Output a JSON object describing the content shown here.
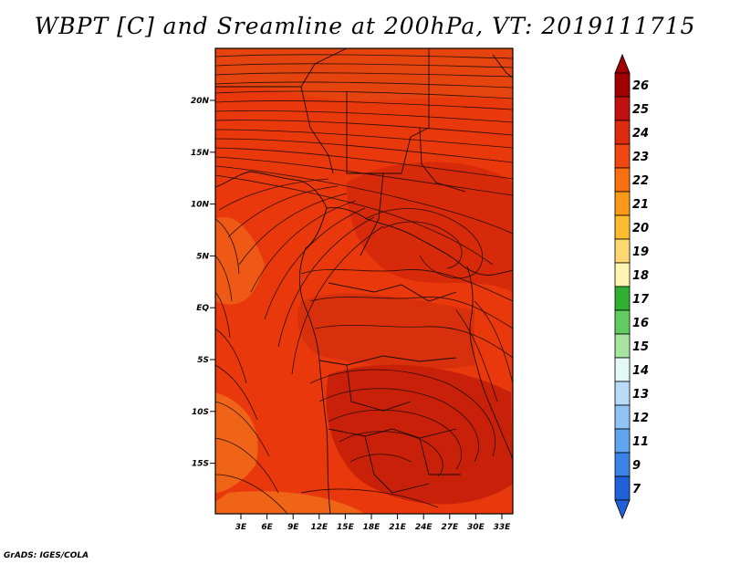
{
  "title": "WBPT [C] and Sreamline at 200hPa, VT: 2019111715",
  "footer": "GrADS: IGES/COLA",
  "map": {
    "lat_ticks": [
      "20N",
      "15N",
      "10N",
      "5N",
      "EQ",
      "5S",
      "10S",
      "15S"
    ],
    "lon_ticks": [
      "3E",
      "6E",
      "9E",
      "12E",
      "15E",
      "18E",
      "21E",
      "24E",
      "27E",
      "30E",
      "33E"
    ],
    "fill_colors": {
      "base": "#e8380c",
      "warm": "#d62a0a",
      "hot": "#c41a08",
      "cool": "#f06018"
    }
  },
  "colorbar": {
    "levels": [
      {
        "label": "26",
        "color": "#a00000"
      },
      {
        "label": "25",
        "color": "#c01010"
      },
      {
        "label": "24",
        "color": "#dd2c0c"
      },
      {
        "label": "23",
        "color": "#f04810"
      },
      {
        "label": "22",
        "color": "#f87010"
      },
      {
        "label": "21",
        "color": "#fa9a18"
      },
      {
        "label": "20",
        "color": "#fcbc30"
      },
      {
        "label": "19",
        "color": "#fdd870"
      },
      {
        "label": "18",
        "color": "#fff4b0"
      },
      {
        "label": "17",
        "color": "#30b030"
      },
      {
        "label": "16",
        "color": "#60cc60"
      },
      {
        "label": "15",
        "color": "#a6e4a0"
      },
      {
        "label": "14",
        "color": "#e4f8f8"
      },
      {
        "label": "13",
        "color": "#b8dcf8"
      },
      {
        "label": "12",
        "color": "#90c4f4"
      },
      {
        "label": "11",
        "color": "#60a4f0"
      },
      {
        "label": "9",
        "color": "#3a84e8"
      },
      {
        "label": "7",
        "color": "#2060d8"
      }
    ]
  }
}
